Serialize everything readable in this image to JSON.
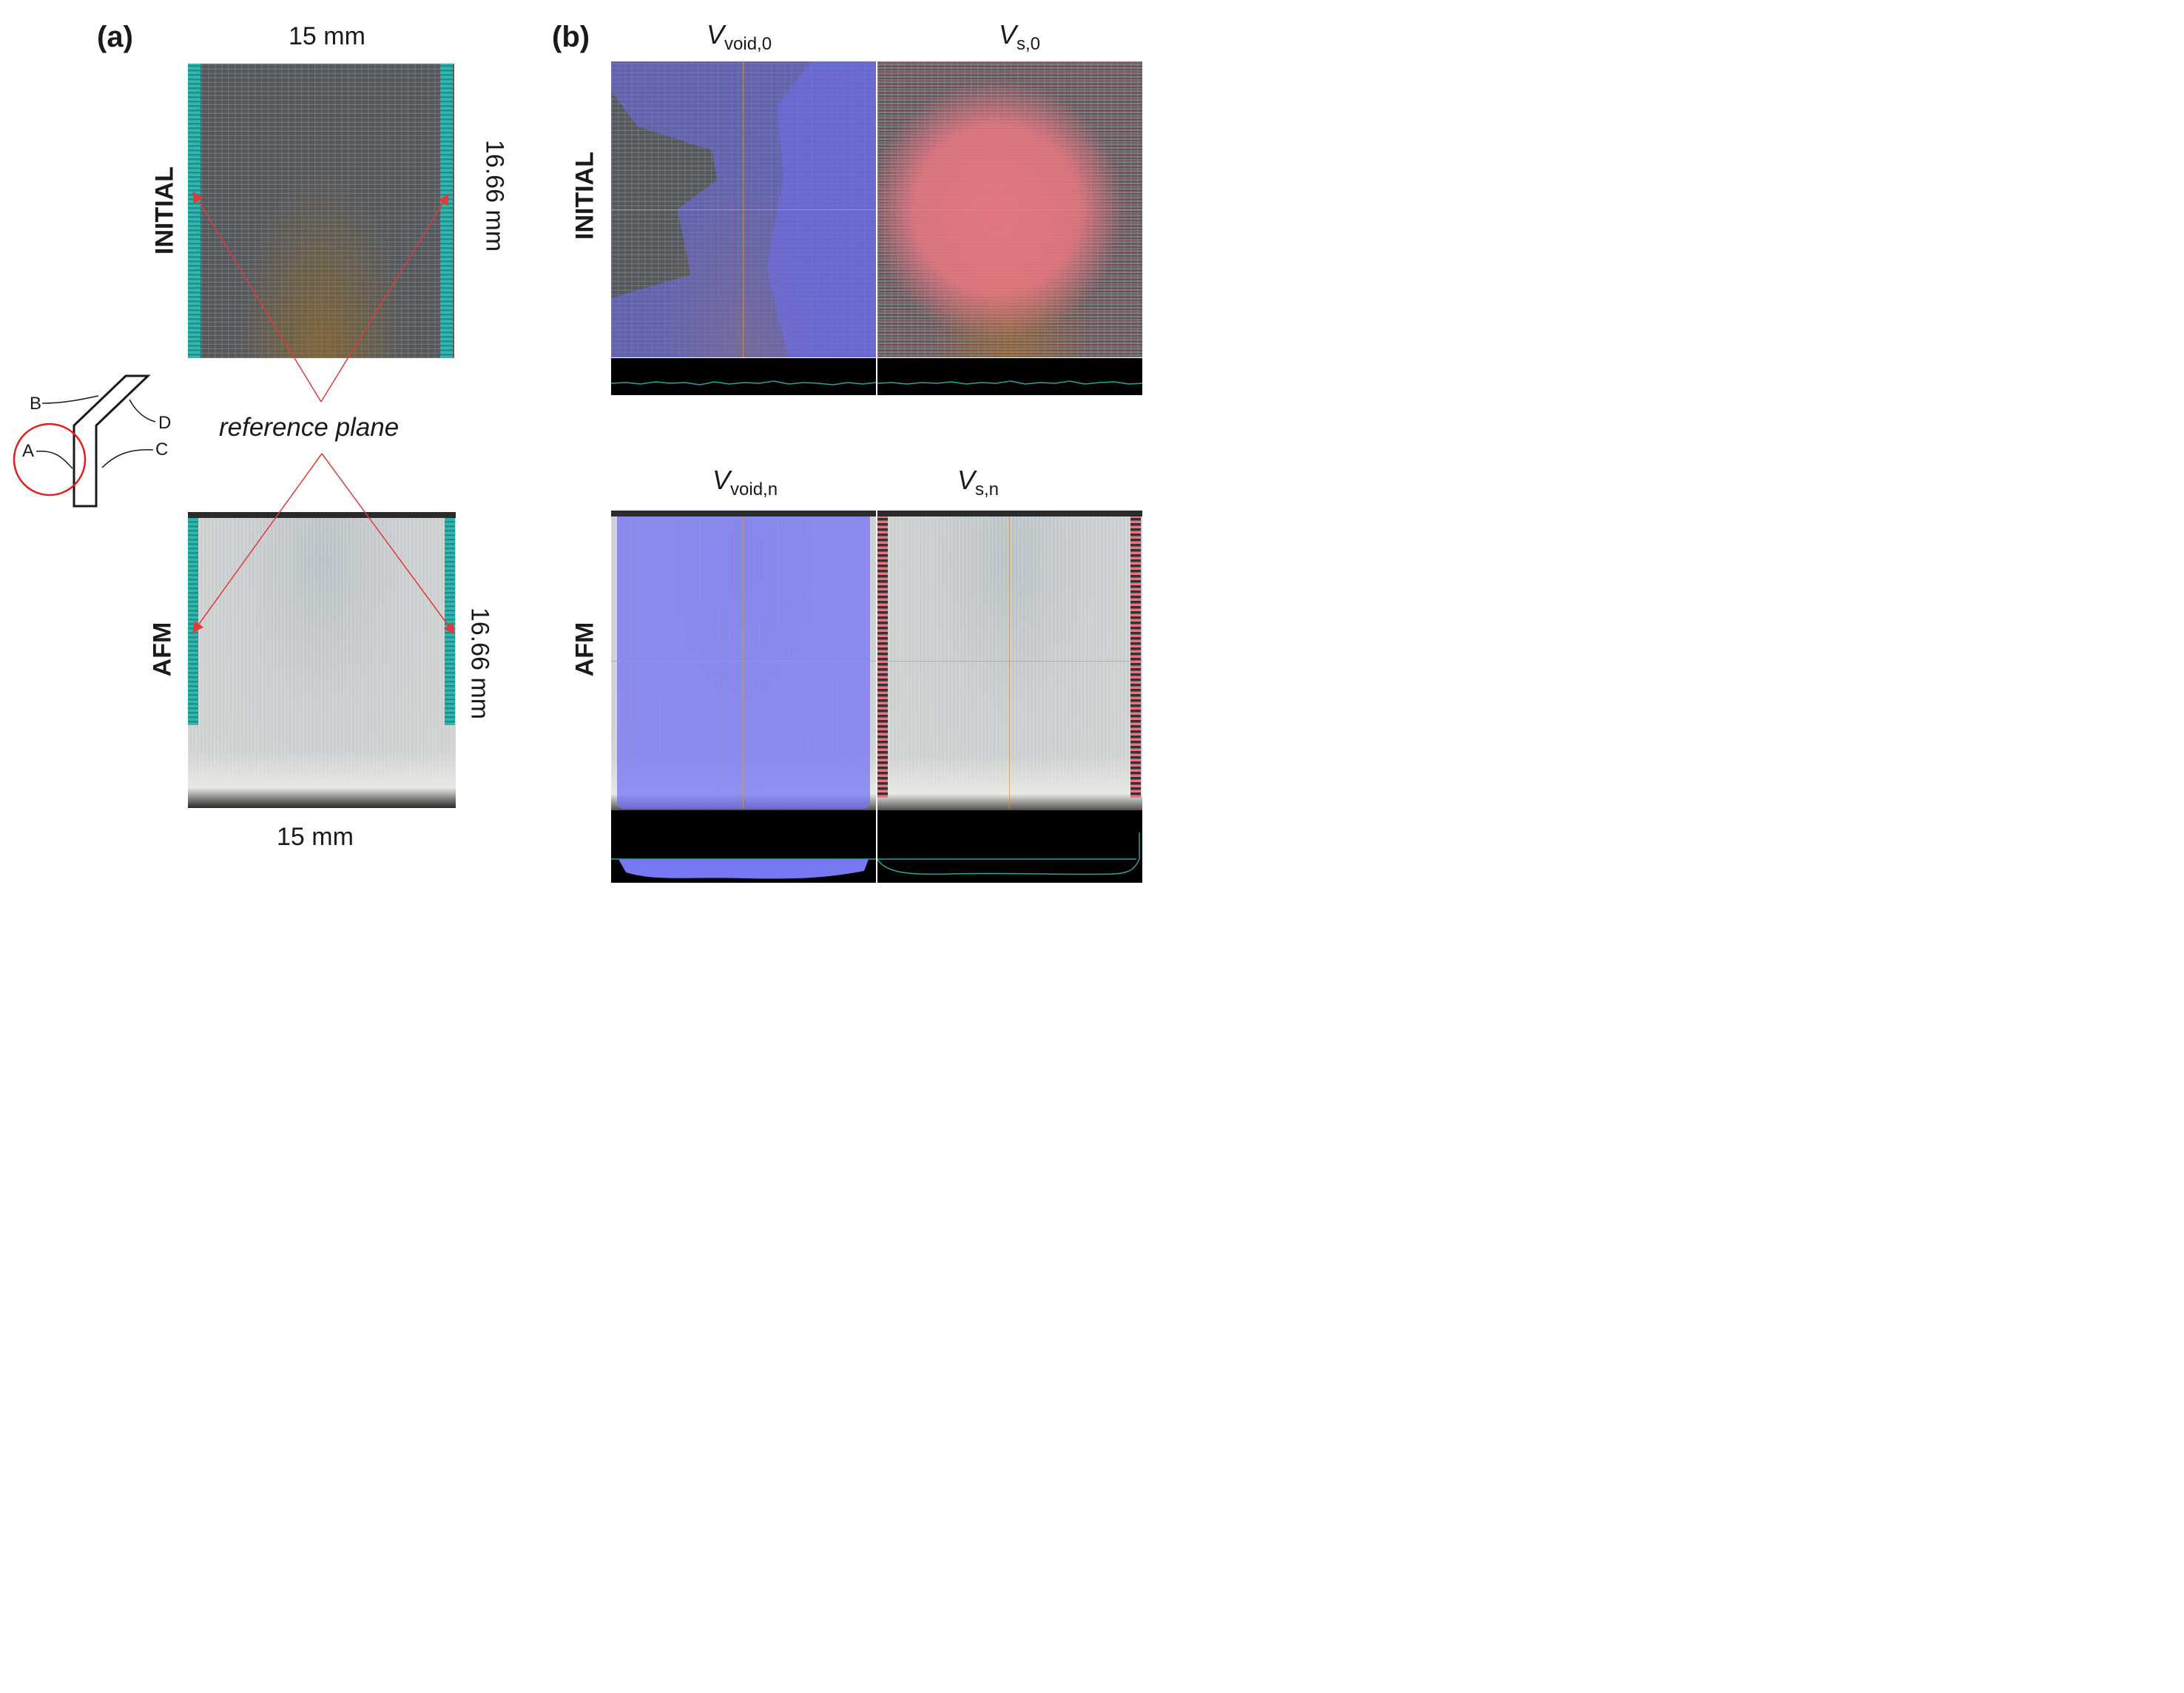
{
  "panel_a": {
    "label": "(a)",
    "top_width": "15 mm",
    "bottom_width": "15 mm",
    "height_top": "16.66 mm",
    "height_bottom": "16.66 mm",
    "row_initial": "INITIAL",
    "row_afm": "AFM",
    "reference_plane": "reference plane",
    "schematic": {
      "labels": [
        "A",
        "B",
        "C",
        "D"
      ]
    }
  },
  "panel_b": {
    "label": "(b)",
    "row_initial": "INITIAL",
    "row_afm": "AFM",
    "col_void_0": {
      "symbol": "V",
      "subscript": "void,0"
    },
    "col_s_0": {
      "symbol": "V",
      "subscript": "s,0"
    },
    "col_void_n": {
      "symbol": "V",
      "subscript": "void,n"
    },
    "col_s_n": {
      "symbol": "V",
      "subscript": "s,n"
    }
  },
  "colors": {
    "void_overlay": "#6e6eeb",
    "solid_overlay": "#e87682",
    "reference_line": "#e03a3a",
    "edge_strip": "#2fb7b0",
    "profile_line": "#2aa39a"
  }
}
